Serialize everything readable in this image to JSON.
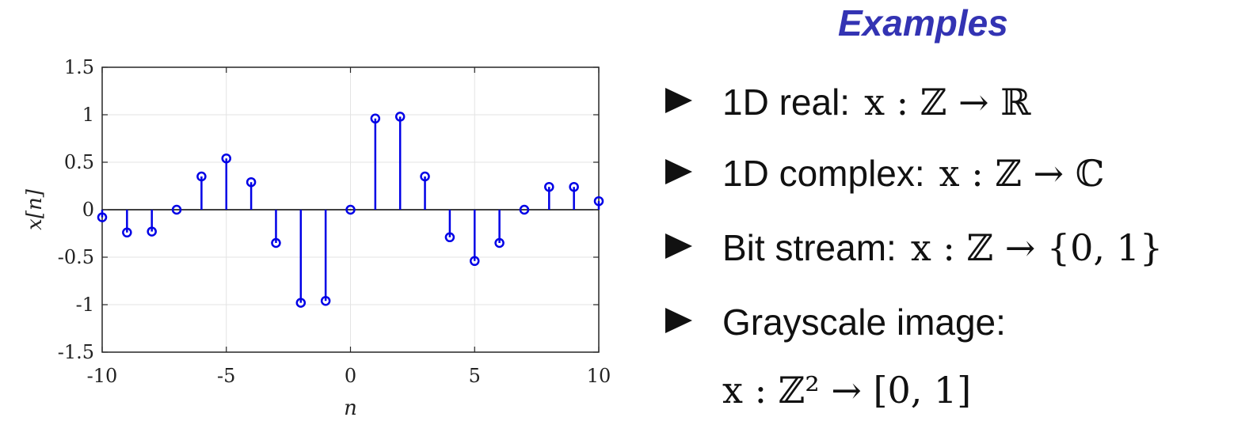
{
  "slide": {
    "title": "Examples",
    "bullets": [
      {
        "label": "1D real:",
        "math": "x : ℤ → ℝ"
      },
      {
        "label": "1D complex:",
        "math": "x : ℤ → ℂ"
      },
      {
        "label": "Bit stream:",
        "math": "x : ℤ → {0, 1}"
      },
      {
        "label": "Grayscale image:",
        "math": "x : ℤ² → [0, 1]"
      }
    ]
  },
  "chart_data": {
    "type": "stem",
    "xlabel": "n",
    "ylabel": "x[n]",
    "xlim": [
      -10,
      10
    ],
    "ylim": [
      -1.5,
      1.5
    ],
    "xticks": [
      -10,
      -5,
      0,
      5,
      10
    ],
    "yticks": [
      -1.5,
      -1,
      -0.5,
      0,
      0.5,
      1,
      1.5
    ],
    "xtick_labels": [
      "-10",
      "-5",
      "0",
      "5",
      "10"
    ],
    "ytick_labels": [
      "-1.5",
      "-1",
      "-0.5",
      "0",
      "0.5",
      "1",
      "1.5"
    ],
    "grid": true,
    "color": "#0000e6",
    "x": [
      -10,
      -9,
      -8,
      -7,
      -6,
      -5,
      -4,
      -3,
      -2,
      -1,
      0,
      1,
      2,
      3,
      4,
      5,
      6,
      7,
      8,
      9,
      10
    ],
    "y": [
      -0.08,
      -0.24,
      -0.23,
      0.0,
      0.35,
      0.54,
      0.29,
      -0.35,
      -0.98,
      -0.96,
      0.0,
      0.96,
      0.98,
      0.35,
      -0.29,
      -0.54,
      -0.35,
      0.0,
      0.24,
      0.24,
      0.09
    ]
  }
}
